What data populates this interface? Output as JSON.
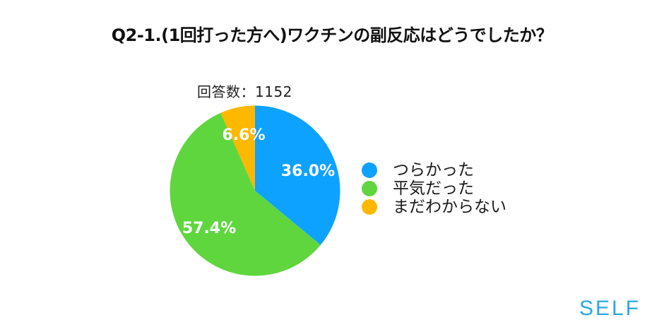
{
  "header": {
    "title": "Q2-1.(1回打った方へ)ワクチンの副反応はどうでしたか？"
  },
  "respondents": {
    "label": "回答数：1152"
  },
  "legend": {
    "items": [
      {
        "label": "つらかった",
        "color": "#0DA2FF"
      },
      {
        "label": "平気だった",
        "color": "#5FD63E"
      },
      {
        "label": "まだわからない",
        "color": "#FFB800"
      }
    ]
  },
  "slices": {
    "labels": [
      "36.0%",
      "57.4%",
      "6.6%"
    ]
  },
  "logo": {
    "text": "SELF",
    "color": "#2AA9E0"
  },
  "chart_data": {
    "type": "pie",
    "title": "Q2-1.(1回打った方へ)ワクチンの副反応はどうでしたか？",
    "subtitle": "回答数：1152",
    "categories": [
      "つらかった",
      "平気だった",
      "まだわからない"
    ],
    "values": [
      36.0,
      57.4,
      6.6
    ],
    "unit": "%",
    "colors": [
      "#0DA2FF",
      "#5FD63E",
      "#FFB800"
    ],
    "start_angle": "12 o'clock",
    "direction": "clockwise",
    "legend_position": "right",
    "data_labels": [
      "36.0%",
      "57.4%",
      "6.6%"
    ],
    "total_responses": 1152
  }
}
